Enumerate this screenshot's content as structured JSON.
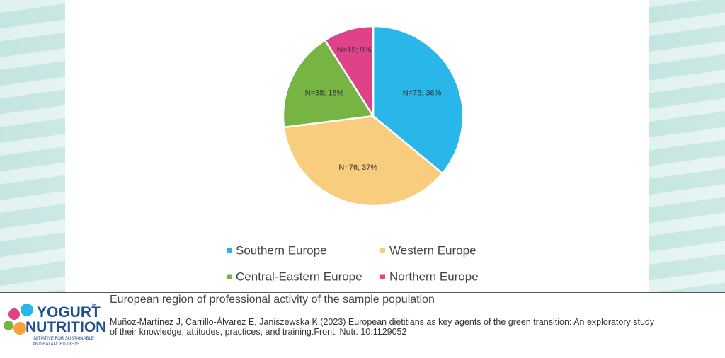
{
  "chart_data": {
    "type": "pie",
    "categories": [
      "Southern Europe",
      "Western Europe",
      "Central-Eastern Europe",
      "Northern Europe"
    ],
    "values": [
      36,
      37,
      18,
      9
    ],
    "value_labels": [
      "N=75; 36%",
      "N=76; 37%",
      "N=38; 18%",
      "N=19; 9%"
    ],
    "colors": [
      "#29b6e8",
      "#f9cd7e",
      "#76b443",
      "#e0428a"
    ],
    "legend": "bottom"
  },
  "caption": "European region of professional activity of the sample population",
  "citation": "Muñoz-Martínez J, Carrillo-Álvarez E, Janiszewska K (2023) European dietitians as key agents of the green transition: An exploratory study of their knowledge, attitudes, practices, and training.Front. Nutr. 10:1129052",
  "logo": {
    "line1": "YOGURT",
    "connector": "in",
    "line2": "NUTRITION",
    "tagline1": "INITIATIVE FOR SUSTAINABLE",
    "tagline2": "AND BALANCED DIETS"
  }
}
